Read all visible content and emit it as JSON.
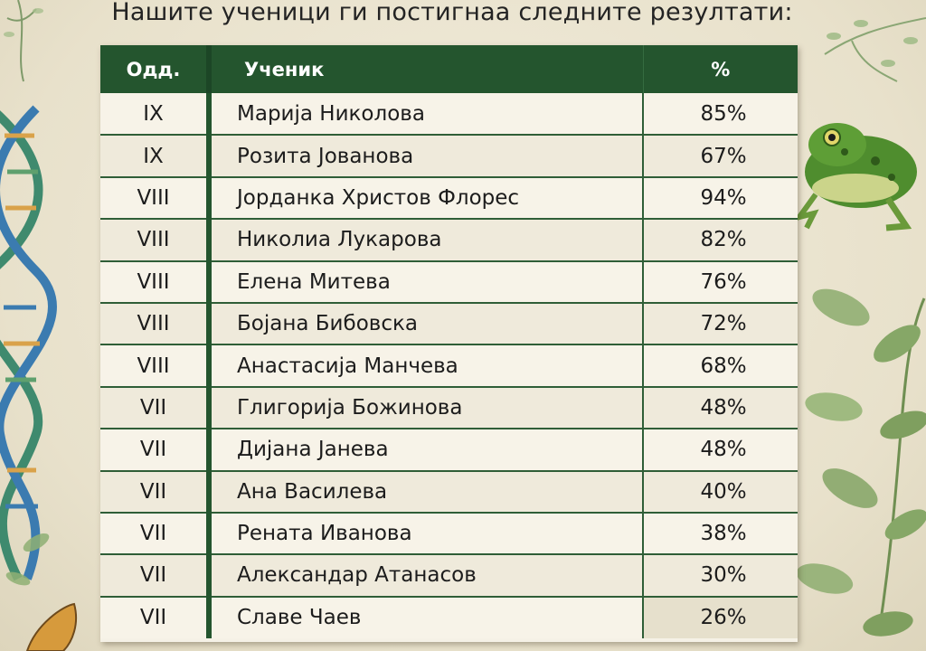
{
  "heading": "Нашите ученици ги постигнаа следните резултати:",
  "table": {
    "columns": [
      "Одд.",
      "Ученик",
      "%"
    ],
    "rows": [
      {
        "grade": "IX",
        "name": "Марија Николова",
        "percent": "85%"
      },
      {
        "grade": "IX",
        "name": "Розита Јованова",
        "percent": "67%"
      },
      {
        "grade": "VIII",
        "name": "Јорданка Христов Флорес",
        "percent": "94%"
      },
      {
        "grade": "VIII",
        "name": "Николиа Лукарова",
        "percent": "82%"
      },
      {
        "grade": "VIII",
        "name": "Елена Митева",
        "percent": "76%"
      },
      {
        "grade": "VIII",
        "name": "Бојана Бибовска",
        "percent": "72%"
      },
      {
        "grade": "VIII",
        "name": "Анастасија Манчева",
        "percent": "68%"
      },
      {
        "grade": "VII",
        "name": "Глигорија Божинова",
        "percent": "48%"
      },
      {
        "grade": "VII",
        "name": "Дијана Јанева",
        "percent": "48%"
      },
      {
        "grade": "VII",
        "name": "Ана Василева",
        "percent": "40%"
      },
      {
        "grade": "VII",
        "name": "Рената Иванова",
        "percent": "38%"
      },
      {
        "grade": "VII",
        "name": "Александар Атанасов",
        "percent": "30%"
      },
      {
        "grade": "VII",
        "name": "Славе Чаев",
        "percent": "26%"
      }
    ]
  },
  "decorations": {
    "left": [
      "dna-helix-illustration",
      "leaf-branch-illustration",
      "butterfly-wing-illustration"
    ],
    "right": [
      "frog-illustration",
      "leaf-branch-illustration",
      "plant-sprig-illustration"
    ]
  },
  "colors": {
    "header_green": "#24552e",
    "paper": "#f5f1e6",
    "background": "#ece6d3"
  }
}
